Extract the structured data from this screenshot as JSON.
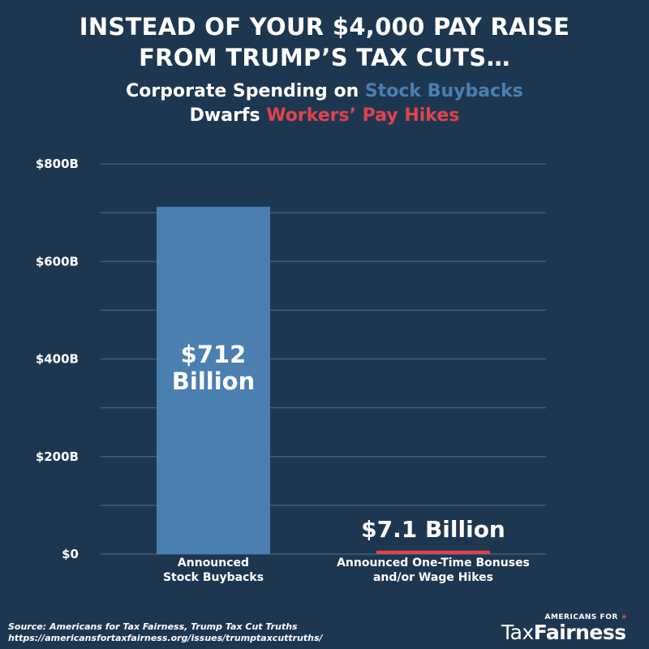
{
  "header": {
    "line1": "INSTEAD OF YOUR $4,000 PAY RAISE",
    "line2": "FROM TRUMP’S TAX CUTS…",
    "sub_prefix": "Corporate Spending on ",
    "sub_blue": "Stock Buybacks",
    "sub_line2_prefix": "Dwarfs ",
    "sub_red": "Workers’ Pay Hikes"
  },
  "chart_data": {
    "type": "bar",
    "categories": [
      "Announced Stock Buybacks",
      "Announced One-Time Bonuses and/or Wage Hikes"
    ],
    "category_lines": [
      [
        "Announced",
        "Stock Buybacks"
      ],
      [
        "Announced One-Time Bonuses",
        "and/or Wage Hikes"
      ]
    ],
    "values": [
      712,
      7.1
    ],
    "value_labels": [
      [
        "$712",
        "Billion"
      ],
      [
        "$7.1 Billion"
      ]
    ],
    "colors": [
      "#4a7fb0",
      "#e0434c"
    ],
    "ylim": [
      0,
      800
    ],
    "yticks": [
      0,
      200,
      400,
      600,
      800
    ],
    "ytick_labels": [
      "$0",
      "$200B",
      "$400B",
      "$600B",
      "$800B"
    ],
    "grid": true,
    "title": "",
    "xlabel": "",
    "ylabel": ""
  },
  "footer": {
    "source_line1": "Source: Americans for Tax Fairness, Trump Tax Cut Truths",
    "source_line2": "https://americansfortaxfairness.org/issues/trumptaxcuttruths/",
    "logo_small": "AMERICANS FOR",
    "logo_tax": "Tax",
    "logo_fairness": "Fairness"
  }
}
